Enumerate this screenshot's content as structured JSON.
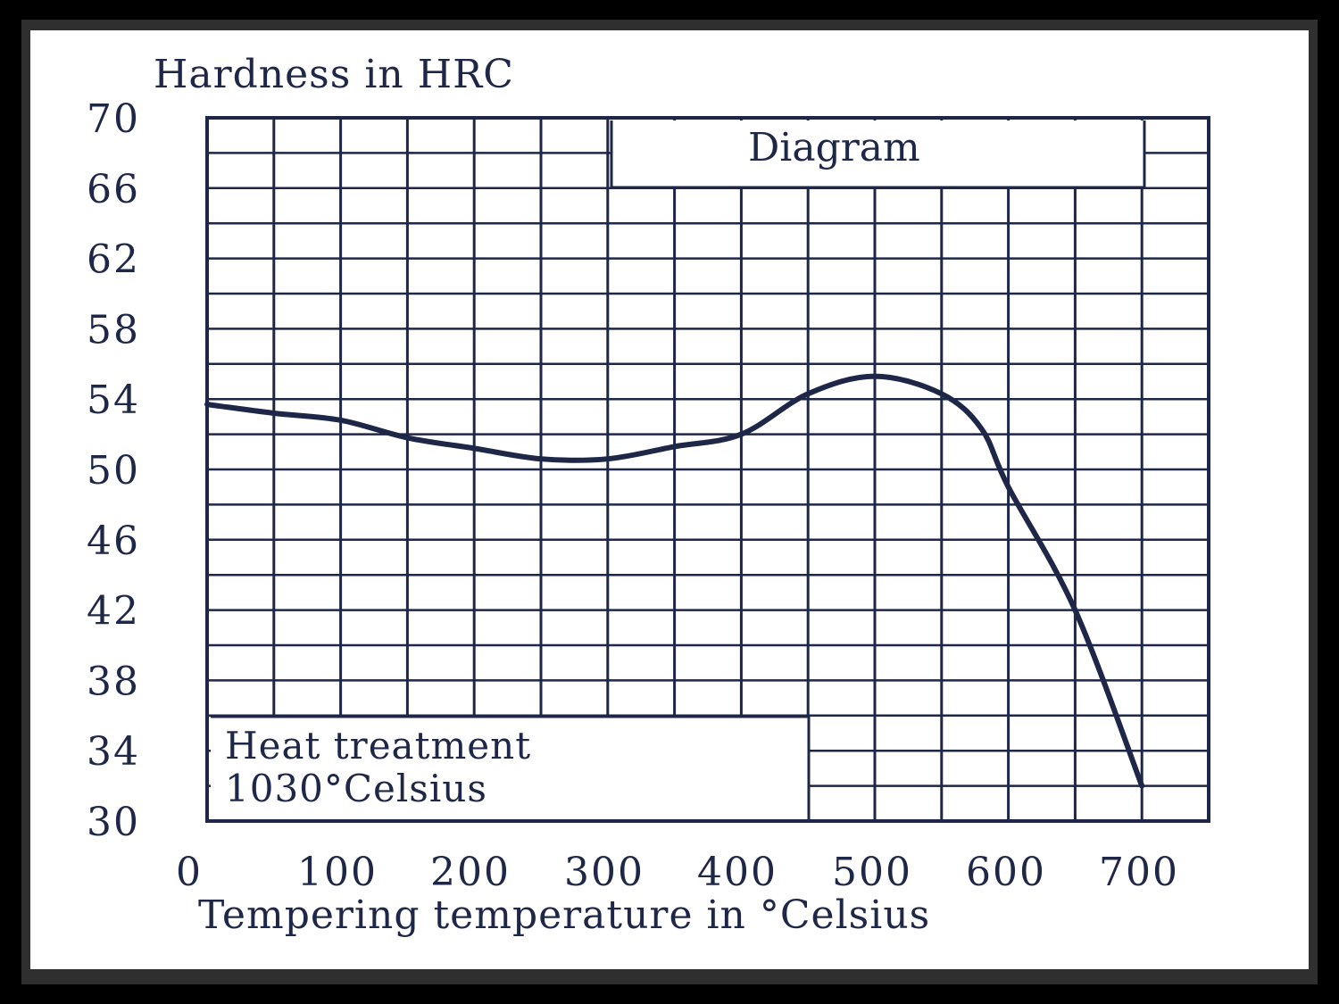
{
  "chart_data": {
    "type": "line",
    "ylabel": "Hardness in HRC",
    "xlabel": "Tempering temperature in °Celsius",
    "xlim": [
      0,
      750
    ],
    "ylim": [
      30,
      70
    ],
    "x_ticks": [
      0,
      100,
      200,
      300,
      400,
      500,
      600,
      700
    ],
    "y_ticks": [
      70,
      66,
      62,
      58,
      54,
      50,
      46,
      42,
      38,
      34,
      30
    ],
    "grid": true,
    "annotations": {
      "top_box": "Diagram",
      "bottom_box_line1": "Heat treatment",
      "bottom_box_line2": "1030°Celsius"
    },
    "series": [
      {
        "x": [
          0,
          50,
          100,
          150,
          200,
          250,
          300,
          350,
          400,
          450,
          500,
          550,
          580,
          600,
          650,
          700
        ],
        "y": [
          53.7,
          53.2,
          52.8,
          51.8,
          51.2,
          50.6,
          50.6,
          51.3,
          52.0,
          54.3,
          55.3,
          54.3,
          52.3,
          49.0,
          42.0,
          32.0
        ]
      }
    ]
  },
  "colors": {
    "ink": "#1e2748",
    "frame": "#000000",
    "paper": "#ffffff"
  }
}
